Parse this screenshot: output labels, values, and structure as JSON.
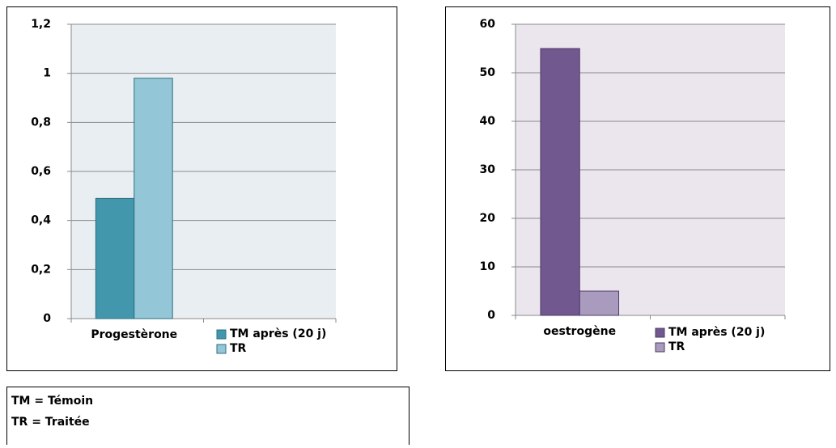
{
  "chart_data": [
    {
      "type": "bar",
      "categories": [
        "Progestèrone",
        null
      ],
      "series": [
        {
          "name": "TM après (20 j)",
          "color": "#4397ad",
          "values": [
            0.49,
            null
          ]
        },
        {
          "name": "TR",
          "color": "#93c6d6",
          "values": [
            0.98,
            null
          ]
        }
      ],
      "ylim": [
        0,
        1.2
      ],
      "yticks": [
        0,
        {
          "value": 0.2,
          "label": "0,2"
        },
        {
          "value": 0.4,
          "label": "0,4"
        },
        {
          "value": 0.6,
          "label": "0,6"
        },
        {
          "value": 0.8,
          "label": "0,8"
        },
        1,
        {
          "value": 1.2,
          "label": "1,2"
        }
      ],
      "grid": true,
      "legend": "bottom-right"
    },
    {
      "type": "bar",
      "categories": [
        "oestrogène",
        null
      ],
      "series": [
        {
          "name": "TM après (20 j)",
          "color": "#71588f",
          "values": [
            55,
            null
          ]
        },
        {
          "name": "TR",
          "color": "#a99bbd",
          "values": [
            5,
            null
          ]
        }
      ],
      "ylim": [
        0,
        60
      ],
      "yticks": [
        0,
        10,
        20,
        30,
        40,
        50,
        60
      ],
      "grid": true,
      "legend": "bottom-right"
    }
  ],
  "notes": [
    "TM = Témoin",
    "TR = Traitée"
  ]
}
